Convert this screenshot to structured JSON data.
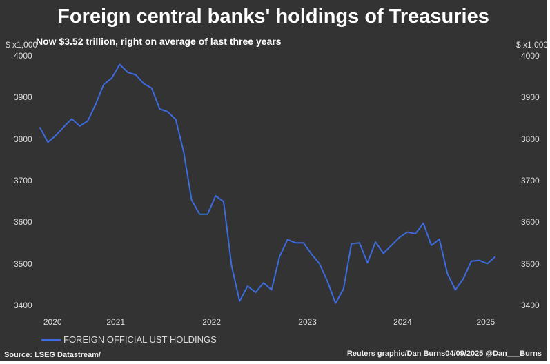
{
  "chart_data": {
    "type": "line",
    "title": "Foreign central banks' holdings of Treasuries",
    "subtitle": "Now $3.52 trillion, right on average of last three years",
    "ylabel_left": "$ x1,000",
    "ylabel_right": "$ x1,000",
    "ylim": [
      3400,
      4000
    ],
    "yticks": [
      "4000",
      "3900",
      "3800",
      "3700",
      "3600",
      "3500",
      "3400"
    ],
    "ytick_values": [
      4000,
      3900,
      3800,
      3700,
      3600,
      3500,
      3400
    ],
    "xtick_labels": [
      "2020",
      "2021",
      "2022",
      "2023",
      "2024",
      "2025"
    ],
    "xtick_index": [
      1.6,
      9.5,
      21.5,
      33.5,
      45.4,
      55.8
    ],
    "frequency": "monthly",
    "grid": false,
    "legend_position": "bottom-left",
    "series": [
      {
        "name": "FOREIGN OFFICIAL UST HOLDINGS",
        "color": "#3d6be0",
        "values": [
          3830,
          3794,
          3810,
          3831,
          3850,
          3833,
          3845,
          3886,
          3933,
          3948,
          3981,
          3962,
          3956,
          3935,
          3924,
          3874,
          3867,
          3849,
          3771,
          3655,
          3621,
          3621,
          3665,
          3651,
          3497,
          3412,
          3448,
          3433,
          3456,
          3439,
          3519,
          3560,
          3552,
          3552,
          3525,
          3502,
          3459,
          3407,
          3441,
          3550,
          3552,
          3504,
          3554,
          3527,
          3546,
          3565,
          3578,
          3574,
          3599,
          3546,
          3561,
          3478,
          3439,
          3466,
          3508,
          3510,
          3502,
          3519
        ]
      }
    ]
  },
  "footer": {
    "source": "Source: LSEG Datastream/",
    "credit": "Reuters graphic/Dan Burns04/09/2025 @Dan___Burns"
  }
}
